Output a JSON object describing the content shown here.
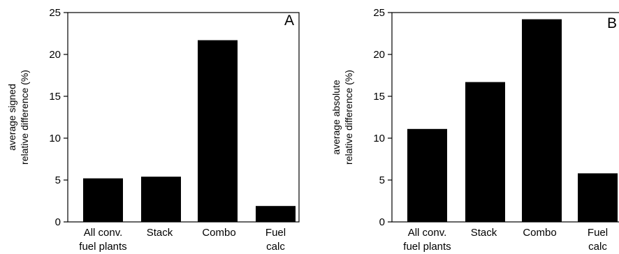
{
  "chart_data": [
    {
      "type": "bar",
      "panel_label": "A",
      "categories": [
        [
          "All conv.",
          "fuel plants"
        ],
        [
          "Stack"
        ],
        [
          "Combo"
        ],
        [
          "Fuel",
          "calc"
        ]
      ],
      "values": [
        5.2,
        5.4,
        21.7,
        1.9
      ],
      "ylabel": [
        "average signed",
        "relative difference (%)"
      ],
      "ylim": [
        0,
        25
      ],
      "yticks": [
        0,
        5,
        10,
        15,
        20,
        25
      ],
      "bar_color": "#000000",
      "grid": false
    },
    {
      "type": "bar",
      "panel_label": "B",
      "categories": [
        [
          "All conv.",
          "fuel plants"
        ],
        [
          "Stack"
        ],
        [
          "Combo"
        ],
        [
          "Fuel",
          "calc"
        ]
      ],
      "values": [
        11.1,
        16.7,
        24.2,
        5.8
      ],
      "ylabel": [
        "average absolute",
        "relative difference (%)"
      ],
      "ylim": [
        0,
        25
      ],
      "yticks": [
        0,
        5,
        10,
        15,
        20,
        25
      ],
      "bar_color": "#000000",
      "grid": false
    }
  ]
}
